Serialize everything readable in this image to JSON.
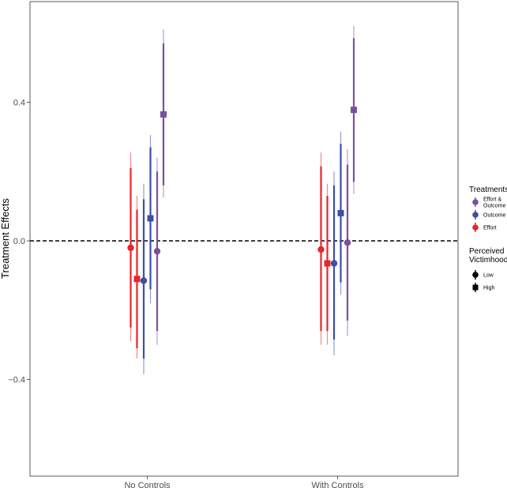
{
  "chart_data": {
    "type": "errorbar",
    "ylabel": "Treatment Effects",
    "xlabel": "",
    "categories": [
      "No Controls",
      "With Controls"
    ],
    "ylim": [
      -0.68,
      0.69
    ],
    "yticks": [
      -0.4,
      0.0,
      0.4
    ],
    "ytick_labels": [
      "−0.4",
      "0.0",
      "0.4"
    ],
    "reference_line": {
      "y": 0,
      "style": "dashed"
    },
    "grid": false,
    "legend": {
      "placement": "right",
      "treatments_title": "Treatments",
      "treatments": [
        {
          "key": "effort_outcome",
          "lines": [
            "Effort &",
            "Outcome"
          ],
          "color": "#7B4FA0"
        },
        {
          "key": "outcome",
          "lines": [
            "Outcome"
          ],
          "color": "#3A4FA6"
        },
        {
          "key": "effort",
          "lines": [
            "Effort"
          ],
          "color": "#E8262B"
        }
      ],
      "victimhood_title_lines": [
        "Perceived",
        "Victimhood"
      ],
      "victimhood": [
        {
          "key": "low",
          "label": "Low",
          "shape": "circle"
        },
        {
          "key": "high",
          "label": "High",
          "shape": "square"
        }
      ]
    },
    "series": [
      {
        "treatment": "effort",
        "victimhood": "low",
        "color": "#E8262B",
        "points": [
          {
            "category": "No Controls",
            "estimate": -0.02,
            "ci90": [
              -0.25,
              0.21
            ],
            "ci95": [
              -0.29,
              0.255
            ]
          },
          {
            "category": "With Controls",
            "estimate": -0.025,
            "ci90": [
              -0.26,
              0.215
            ],
            "ci95": [
              -0.3,
              0.255
            ]
          }
        ]
      },
      {
        "treatment": "effort",
        "victimhood": "high",
        "color": "#E8262B",
        "points": [
          {
            "category": "No Controls",
            "estimate": -0.11,
            "ci90": [
              -0.31,
              0.09
            ],
            "ci95": [
              -0.34,
              0.13
            ]
          },
          {
            "category": "With Controls",
            "estimate": -0.065,
            "ci90": [
              -0.26,
              0.13
            ],
            "ci95": [
              -0.3,
              0.165
            ]
          }
        ]
      },
      {
        "treatment": "outcome",
        "victimhood": "low",
        "color": "#3A4FA6",
        "points": [
          {
            "category": "No Controls",
            "estimate": -0.115,
            "ci90": [
              -0.34,
              0.12
            ],
            "ci95": [
              -0.385,
              0.165
            ]
          },
          {
            "category": "With Controls",
            "estimate": -0.065,
            "ci90": [
              -0.285,
              0.16
            ],
            "ci95": [
              -0.33,
              0.2
            ]
          }
        ]
      },
      {
        "treatment": "outcome",
        "victimhood": "high",
        "color": "#3A4FA6",
        "points": [
          {
            "category": "No Controls",
            "estimate": 0.065,
            "ci90": [
              -0.14,
              0.27
            ],
            "ci95": [
              -0.18,
              0.305
            ]
          },
          {
            "category": "With Controls",
            "estimate": 0.08,
            "ci90": [
              -0.12,
              0.28
            ],
            "ci95": [
              -0.155,
              0.315
            ]
          }
        ]
      },
      {
        "treatment": "effort_outcome",
        "victimhood": "low",
        "color": "#7B4FA0",
        "points": [
          {
            "category": "No Controls",
            "estimate": -0.03,
            "ci90": [
              -0.26,
              0.2
            ],
            "ci95": [
              -0.3,
              0.24
            ]
          },
          {
            "category": "With Controls",
            "estimate": -0.005,
            "ci90": [
              -0.23,
              0.22
            ],
            "ci95": [
              -0.275,
              0.265
            ]
          }
        ]
      },
      {
        "treatment": "effort_outcome",
        "victimhood": "high",
        "color": "#7B4FA0",
        "points": [
          {
            "category": "No Controls",
            "estimate": 0.365,
            "ci90": [
              0.16,
              0.57
            ],
            "ci95": [
              0.125,
              0.61
            ]
          },
          {
            "category": "With Controls",
            "estimate": 0.378,
            "ci90": [
              0.17,
              0.585
            ],
            "ci95": [
              0.135,
              0.62
            ]
          }
        ]
      }
    ]
  }
}
